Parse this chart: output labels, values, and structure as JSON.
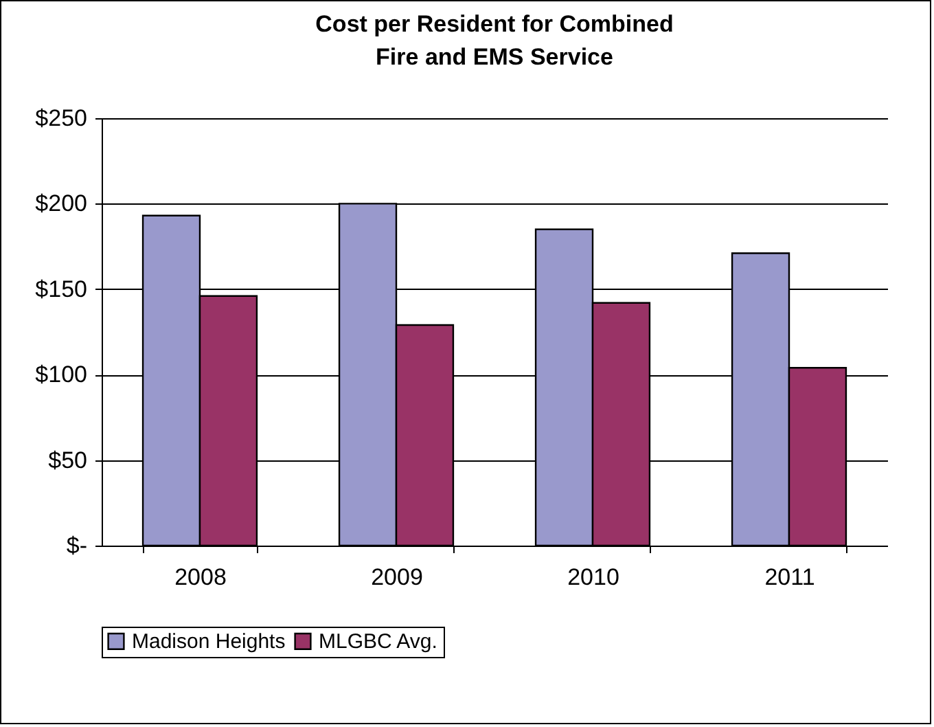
{
  "chart_data": {
    "type": "bar",
    "title": [
      "Cost per Resident for Combined",
      "Fire and EMS Service"
    ],
    "categories": [
      "2008",
      "2009",
      "2010",
      "2011"
    ],
    "series": [
      {
        "name": "Madison Heights",
        "color": "#9999cc",
        "values": [
          193,
          200,
          185,
          171
        ]
      },
      {
        "name": "MLGBC Avg.",
        "color": "#993366",
        "values": [
          146,
          129,
          142,
          104
        ]
      }
    ],
    "ylim": [
      0,
      250
    ],
    "yticks": [
      {
        "value": 0,
        "label": "$-"
      },
      {
        "value": 50,
        "label": "$50"
      },
      {
        "value": 100,
        "label": "$100"
      },
      {
        "value": 150,
        "label": "$150"
      },
      {
        "value": 200,
        "label": "$200"
      },
      {
        "value": 250,
        "label": "$250"
      }
    ],
    "grid": "y",
    "legend": "bottom"
  }
}
